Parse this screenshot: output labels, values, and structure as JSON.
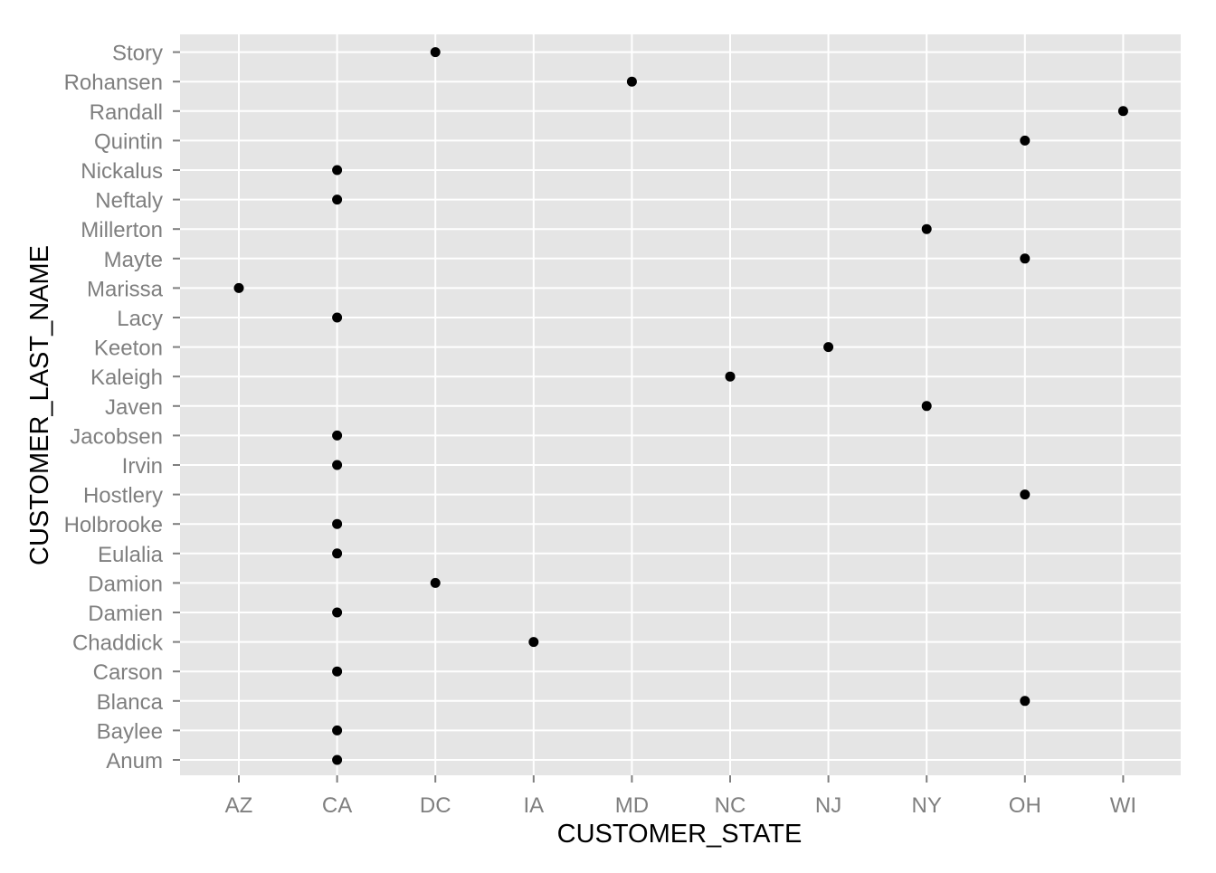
{
  "chart_data": {
    "type": "scatter",
    "title": "",
    "xlabel": "CUSTOMER_STATE",
    "ylabel": "CUSTOMER_LAST_NAME",
    "x_categories": [
      "AZ",
      "CA",
      "DC",
      "IA",
      "MD",
      "NC",
      "NJ",
      "NY",
      "OH",
      "WI"
    ],
    "y_categories": [
      "Anum",
      "Baylee",
      "Blanca",
      "Carson",
      "Chaddick",
      "Damien",
      "Damion",
      "Eulalia",
      "Holbrooke",
      "Hostlery",
      "Irvin",
      "Jacobsen",
      "Javen",
      "Kaleigh",
      "Keeton",
      "Lacy",
      "Marissa",
      "Mayte",
      "Millerton",
      "Neftaly",
      "Nickalus",
      "Quintin",
      "Randall",
      "Rohansen",
      "Story"
    ],
    "points": [
      {
        "x": "CA",
        "y": "Anum"
      },
      {
        "x": "CA",
        "y": "Baylee"
      },
      {
        "x": "OH",
        "y": "Blanca"
      },
      {
        "x": "CA",
        "y": "Carson"
      },
      {
        "x": "IA",
        "y": "Chaddick"
      },
      {
        "x": "CA",
        "y": "Damien"
      },
      {
        "x": "DC",
        "y": "Damion"
      },
      {
        "x": "CA",
        "y": "Eulalia"
      },
      {
        "x": "CA",
        "y": "Holbrooke"
      },
      {
        "x": "OH",
        "y": "Hostlery"
      },
      {
        "x": "CA",
        "y": "Irvin"
      },
      {
        "x": "CA",
        "y": "Jacobsen"
      },
      {
        "x": "NY",
        "y": "Javen"
      },
      {
        "x": "NC",
        "y": "Kaleigh"
      },
      {
        "x": "NJ",
        "y": "Keeton"
      },
      {
        "x": "CA",
        "y": "Lacy"
      },
      {
        "x": "AZ",
        "y": "Marissa"
      },
      {
        "x": "OH",
        "y": "Mayte"
      },
      {
        "x": "NY",
        "y": "Millerton"
      },
      {
        "x": "CA",
        "y": "Neftaly"
      },
      {
        "x": "CA",
        "y": "Nickalus"
      },
      {
        "x": "OH",
        "y": "Quintin"
      },
      {
        "x": "WI",
        "y": "Randall"
      },
      {
        "x": "MD",
        "y": "Rohansen"
      },
      {
        "x": "DC",
        "y": "Story"
      }
    ],
    "grid": true,
    "legend": "none",
    "colors": {
      "panel_background": "#e5e5e5",
      "grid_line": "#ffffff",
      "point": "#000000",
      "tick_label": "#7f7f7f",
      "axis_title": "#000000",
      "tick_mark": "#7f7f7f"
    }
  }
}
